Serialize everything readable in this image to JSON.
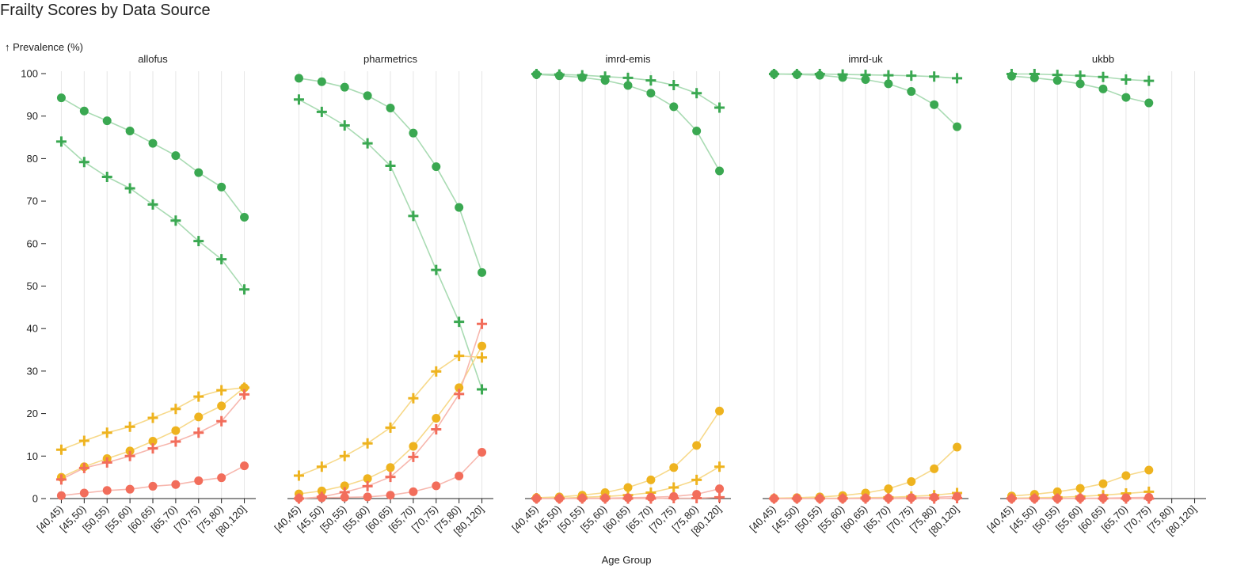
{
  "page_title": "Frailty Scores by Data Source",
  "chart_data": {
    "type": "line",
    "title": "Frailty Scores by Data Source",
    "ylabel": "↑ Prevalence (%)",
    "xlabel": "Age Group",
    "ylim": [
      0,
      100
    ],
    "yticks": [
      0,
      10,
      20,
      30,
      40,
      50,
      60,
      70,
      80,
      90,
      100
    ],
    "grid": true,
    "categories": [
      "[40,45)",
      "[45,50)",
      "[50,55)",
      "[55,60)",
      "[60,65)",
      "[65,70)",
      "[70,75)",
      "[75,80)",
      "[80,120]"
    ],
    "series_colors": {
      "green": "#3aa851",
      "green_line": "#a9dbb3",
      "yellow": "#eeb31f",
      "yellow_line": "#f7d98a",
      "red": "#f26d5b",
      "red_line": "#f7b7ae"
    },
    "facets": [
      {
        "name": "allofus",
        "series": [
          {
            "color": "green",
            "marker": "circle",
            "values": [
              94.3,
              91.2,
              88.9,
              86.5,
              83.6,
              80.7,
              76.7,
              73.3,
              66.2
            ]
          },
          {
            "color": "green",
            "marker": "plus",
            "values": [
              84.0,
              79.2,
              75.7,
              73.0,
              69.2,
              65.4,
              60.6,
              56.3,
              49.2
            ]
          },
          {
            "color": "yellow",
            "marker": "plus",
            "values": [
              11.5,
              13.6,
              15.5,
              16.9,
              19.0,
              21.1,
              24.0,
              25.5,
              26.1
            ]
          },
          {
            "color": "yellow",
            "marker": "circle",
            "values": [
              5.0,
              7.5,
              9.4,
              11.2,
              13.5,
              16.0,
              19.2,
              21.8,
              26.1
            ]
          },
          {
            "color": "red",
            "marker": "plus",
            "values": [
              4.5,
              7.2,
              8.5,
              10.0,
              11.8,
              13.4,
              15.5,
              18.2,
              24.5
            ]
          },
          {
            "color": "red",
            "marker": "circle",
            "values": [
              0.7,
              1.3,
              1.9,
              2.2,
              2.9,
              3.3,
              4.2,
              4.9,
              7.7
            ]
          }
        ]
      },
      {
        "name": "pharmetrics",
        "series": [
          {
            "color": "green",
            "marker": "circle",
            "values": [
              98.9,
              98.1,
              96.8,
              94.8,
              91.9,
              86.0,
              78.1,
              68.5,
              53.2
            ]
          },
          {
            "color": "green",
            "marker": "plus",
            "values": [
              93.9,
              91.0,
              87.8,
              83.6,
              78.3,
              66.5,
              53.8,
              41.6,
              25.7
            ]
          },
          {
            "color": "yellow",
            "marker": "plus",
            "values": [
              5.4,
              7.5,
              10.0,
              13.0,
              16.7,
              23.6,
              29.9,
              33.6,
              33.2
            ]
          },
          {
            "color": "yellow",
            "marker": "circle",
            "values": [
              1.1,
              1.8,
              3.0,
              4.7,
              7.3,
              12.3,
              18.9,
              26.1,
              35.9
            ]
          },
          {
            "color": "red",
            "marker": "plus",
            "values": [
              0.0,
              0.4,
              1.5,
              2.9,
              5.1,
              9.8,
              16.3,
              24.6,
              41.1
            ]
          },
          {
            "color": "red",
            "marker": "circle",
            "values": [
              0.1,
              0.2,
              0.3,
              0.4,
              0.8,
              1.6,
              3.0,
              5.3,
              10.9
            ]
          }
        ]
      },
      {
        "name": "imrd-emis",
        "series": [
          {
            "color": "green",
            "marker": "plus",
            "values": [
              99.9,
              99.8,
              99.6,
              99.3,
              99.0,
              98.4,
              97.3,
              95.4,
              92.0
            ]
          },
          {
            "color": "green",
            "marker": "circle",
            "values": [
              99.8,
              99.5,
              99.1,
              98.4,
              97.2,
              95.4,
              92.2,
              86.5,
              77.1
            ]
          },
          {
            "color": "yellow",
            "marker": "circle",
            "values": [
              0.2,
              0.4,
              0.8,
              1.4,
              2.6,
              4.4,
              7.3,
              12.5,
              20.6
            ]
          },
          {
            "color": "yellow",
            "marker": "plus",
            "values": [
              0.1,
              0.1,
              0.3,
              0.5,
              0.8,
              1.4,
              2.6,
              4.4,
              7.5
            ]
          },
          {
            "color": "red",
            "marker": "circle",
            "values": [
              0.0,
              0.0,
              0.1,
              0.1,
              0.2,
              0.3,
              0.5,
              1.0,
              2.3
            ]
          },
          {
            "color": "red",
            "marker": "plus",
            "values": [
              0.0,
              0.0,
              0.0,
              0.0,
              0.0,
              0.0,
              0.1,
              0.1,
              0.3
            ]
          }
        ]
      },
      {
        "name": "imrd-uk",
        "series": [
          {
            "color": "green",
            "marker": "plus",
            "values": [
              99.9,
              99.9,
              99.9,
              99.8,
              99.7,
              99.6,
              99.5,
              99.3,
              98.9
            ]
          },
          {
            "color": "green",
            "marker": "circle",
            "values": [
              99.9,
              99.8,
              99.6,
              99.1,
              98.6,
              97.6,
              95.8,
              92.7,
              87.5
            ]
          },
          {
            "color": "yellow",
            "marker": "circle",
            "values": [
              0.1,
              0.2,
              0.4,
              0.7,
              1.3,
              2.3,
              4.0,
              7.0,
              12.1
            ]
          },
          {
            "color": "yellow",
            "marker": "plus",
            "values": [
              0.0,
              0.0,
              0.1,
              0.1,
              0.2,
              0.3,
              0.5,
              0.8,
              1.3
            ]
          },
          {
            "color": "red",
            "marker": "circle",
            "values": [
              0.0,
              0.0,
              0.0,
              0.0,
              0.1,
              0.1,
              0.2,
              0.3,
              0.5
            ]
          },
          {
            "color": "red",
            "marker": "plus",
            "values": [
              0.0,
              0.0,
              0.0,
              0.0,
              0.0,
              0.0,
              0.0,
              0.0,
              0.1
            ]
          }
        ]
      },
      {
        "name": "ukbb",
        "series": [
          {
            "color": "green",
            "marker": "plus",
            "values": [
              99.9,
              99.9,
              99.7,
              99.5,
              99.2,
              98.6,
              98.3,
              null,
              null
            ]
          },
          {
            "color": "green",
            "marker": "circle",
            "values": [
              99.4,
              99.0,
              98.4,
              97.6,
              96.4,
              94.4,
              93.1,
              null,
              null
            ]
          },
          {
            "color": "yellow",
            "marker": "circle",
            "values": [
              0.6,
              1.0,
              1.6,
              2.4,
              3.5,
              5.4,
              6.7,
              null,
              null
            ]
          },
          {
            "color": "yellow",
            "marker": "plus",
            "values": [
              0.1,
              0.2,
              0.3,
              0.5,
              0.8,
              1.2,
              1.6,
              null,
              null
            ]
          },
          {
            "color": "red",
            "marker": "circle",
            "values": [
              0.0,
              0.0,
              0.0,
              0.1,
              0.1,
              0.2,
              0.3,
              null,
              null
            ]
          },
          {
            "color": "red",
            "marker": "plus",
            "values": [
              0.0,
              0.0,
              0.0,
              0.0,
              0.0,
              0.0,
              0.0,
              null,
              null
            ]
          }
        ]
      }
    ]
  }
}
